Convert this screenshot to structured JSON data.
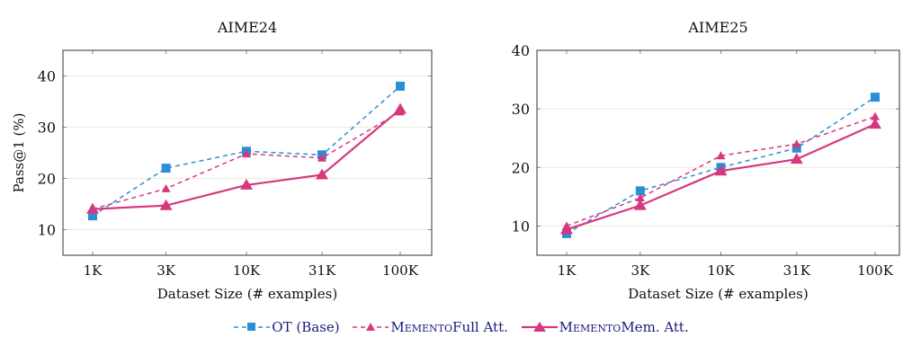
{
  "chart_data": [
    {
      "type": "line",
      "title": "AIME24",
      "xlabel": "Dataset Size (# examples)",
      "ylabel": "Pass@1 (%)",
      "x_scale": "log",
      "categories": [
        "1K",
        "3K",
        "10K",
        "31K",
        "100K"
      ],
      "x": [
        1000,
        3000,
        10000,
        31000,
        100000
      ],
      "ylim": [
        5,
        45
      ],
      "yticks": [
        10,
        20,
        30,
        40
      ],
      "grid": true,
      "series": [
        {
          "name": "OT (Base)",
          "values": [
            12.7,
            22.0,
            25.3,
            24.6,
            38.0
          ]
        },
        {
          "name": "MEMENTO Full Att.",
          "values": [
            14.0,
            18.0,
            24.8,
            24.0,
            33.0
          ]
        },
        {
          "name": "MEMENTO Mem. Att.",
          "values": [
            14.0,
            14.7,
            18.7,
            20.7,
            33.5
          ]
        }
      ]
    },
    {
      "type": "line",
      "title": "AIME25",
      "xlabel": "Dataset Size (# examples)",
      "ylabel": "",
      "x_scale": "log",
      "categories": [
        "1K",
        "3K",
        "10K",
        "31K",
        "100K"
      ],
      "x": [
        1000,
        3000,
        10000,
        31000,
        100000
      ],
      "ylim": [
        5,
        40
      ],
      "yticks": [
        10,
        20,
        30,
        40
      ],
      "grid": true,
      "series": [
        {
          "name": "OT (Base)",
          "values": [
            8.7,
            16.0,
            20.0,
            23.3,
            32.0
          ]
        },
        {
          "name": "MEMENTO Full Att.",
          "values": [
            10.0,
            14.8,
            22.0,
            24.0,
            28.7
          ]
        },
        {
          "name": "MEMENTO Mem. Att.",
          "values": [
            9.4,
            13.5,
            19.4,
            21.4,
            27.4
          ]
        }
      ]
    }
  ],
  "legend": {
    "position": "bottom",
    "items": [
      {
        "label": "OT (Base)",
        "prefix": "",
        "rest": "OT (Base)"
      },
      {
        "label": "MEMENTO Full Att.",
        "prefix": "Memento",
        "rest": " Full Att."
      },
      {
        "label": "MEMENTO Mem. Att.",
        "prefix": "Memento",
        "rest": " Mem. Att."
      }
    ]
  },
  "styles": [
    {
      "color": "#2b8fd6",
      "dash": true,
      "marker": "square"
    },
    {
      "color": "#d6387f",
      "dash": true,
      "marker": "triangle-small"
    },
    {
      "color": "#d6387f",
      "dash": false,
      "marker": "triangle"
    }
  ]
}
